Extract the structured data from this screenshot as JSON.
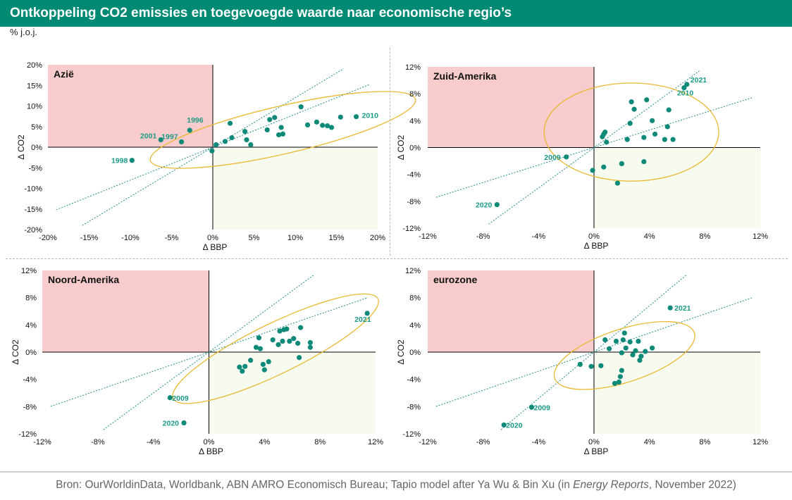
{
  "header": {
    "title": "Ontkoppeling CO2 emissies en toegevoegde waarde naar economische regio’s",
    "unit": "% j.o.j."
  },
  "footer": {
    "source_prefix": "Bron: OurWorldinData, Worldbank, ABN AMRO Economisch Bureau; Tapio model after Ya Wu & Bin Xu (in ",
    "source_italic": "Energy Reports",
    "source_suffix": ", November 2022)"
  },
  "colors": {
    "header_bg": "#008a74",
    "point": "#0f8a78",
    "label": "#1a9a86",
    "trend": "#2a8a88",
    "pink_zone": "#f8cccc",
    "green_zone": "#f7fbef",
    "ellipse": "#e8b830"
  },
  "chart_data": [
    {
      "type": "scatter",
      "title": "Azië",
      "xlabel": "Δ BBP",
      "ylabel": "Δ CO2",
      "xlim": [
        -20,
        20
      ],
      "ylim": [
        -20,
        20
      ],
      "xticks": [
        -20,
        -15,
        -10,
        -5,
        0,
        5,
        10,
        15,
        20
      ],
      "yticks": [
        -20,
        -15,
        -10,
        -5,
        0,
        5,
        10,
        15,
        20
      ],
      "xticklabels": [
        "-20%",
        "-15%",
        "-10%",
        "-5%",
        "0%",
        "5%",
        "10%",
        "15%",
        "20%"
      ],
      "yticklabels": [
        "-20%",
        "-15%",
        "-10%",
        "-5%",
        "0%",
        "5%",
        "10%",
        "15%",
        "20%"
      ],
      "trend_slopes": [
        0.8,
        1.2
      ],
      "ellipse": {
        "cx": 8.5,
        "cy": 4.2,
        "rx": 16.5,
        "ry": 5.8,
        "angle_deg": 13
      },
      "points": [
        {
          "x": -9.8,
          "y": -3.2,
          "label": "1998"
        },
        {
          "x": -6.3,
          "y": 1.8,
          "label": "2001"
        },
        {
          "x": -3.8,
          "y": 1.3,
          "label": "1997"
        },
        {
          "x": -2.8,
          "y": 4.1,
          "label": "1996"
        },
        {
          "x": 17.4,
          "y": 7.4,
          "label": "2010"
        },
        {
          "x": -0.1,
          "y": -0.9,
          "label": ""
        },
        {
          "x": 0.4,
          "y": 0.6,
          "label": ""
        },
        {
          "x": 1.5,
          "y": 1.4,
          "label": ""
        },
        {
          "x": 2.3,
          "y": 2.3,
          "label": ""
        },
        {
          "x": 2.1,
          "y": 5.8,
          "label": ""
        },
        {
          "x": 3.9,
          "y": 3.8,
          "label": ""
        },
        {
          "x": 4.1,
          "y": 1.8,
          "label": ""
        },
        {
          "x": 4.6,
          "y": 0.6,
          "label": ""
        },
        {
          "x": 6.6,
          "y": 4.2,
          "label": ""
        },
        {
          "x": 6.9,
          "y": 6.7,
          "label": ""
        },
        {
          "x": 7.5,
          "y": 7.2,
          "label": ""
        },
        {
          "x": 8.0,
          "y": 3.0,
          "label": ""
        },
        {
          "x": 8.3,
          "y": 4.8,
          "label": ""
        },
        {
          "x": 8.5,
          "y": 3.2,
          "label": ""
        },
        {
          "x": 10.7,
          "y": 9.8,
          "label": ""
        },
        {
          "x": 11.5,
          "y": 5.4,
          "label": ""
        },
        {
          "x": 12.6,
          "y": 6.1,
          "label": ""
        },
        {
          "x": 13.3,
          "y": 5.3,
          "label": ""
        },
        {
          "x": 13.9,
          "y": 5.2,
          "label": ""
        },
        {
          "x": 14.4,
          "y": 4.8,
          "label": ""
        },
        {
          "x": 15.5,
          "y": 7.3,
          "label": ""
        }
      ]
    },
    {
      "type": "scatter",
      "title": "Zuid-Amerika",
      "xlabel": "Δ BBP",
      "ylabel": "Δ CO2",
      "xlim": [
        -12,
        12
      ],
      "ylim": [
        -12,
        12
      ],
      "xticks": [
        -12,
        -8,
        -4,
        0,
        4,
        8,
        12
      ],
      "yticks": [
        -12,
        -8,
        -4,
        0,
        4,
        8,
        12
      ],
      "xticklabels": [
        "-12%",
        "-8%",
        "-4%",
        "0%",
        "4%",
        "8%",
        "12%"
      ],
      "yticklabels": [
        "-12%",
        "-8%",
        "-4%",
        "0%",
        "4%",
        "8%",
        "12%"
      ],
      "trend_slopes": [
        0.65,
        1.5
      ],
      "ellipse": {
        "cx": 2.7,
        "cy": 2.3,
        "rx": 6.3,
        "ry": 7.3,
        "angle_deg": 0
      },
      "points": [
        {
          "x": -2.0,
          "y": -1.4,
          "label": "2009"
        },
        {
          "x": -7.0,
          "y": -8.5,
          "label": "2020"
        },
        {
          "x": 6.7,
          "y": 9.4,
          "label": "2021"
        },
        {
          "x": 6.5,
          "y": 8.9,
          "label": "2010"
        },
        {
          "x": -0.1,
          "y": -3.4,
          "label": ""
        },
        {
          "x": 0.6,
          "y": 1.6,
          "label": ""
        },
        {
          "x": 0.7,
          "y": 2.0,
          "label": ""
        },
        {
          "x": 0.8,
          "y": 2.3,
          "label": ""
        },
        {
          "x": 0.9,
          "y": 0.8,
          "label": ""
        },
        {
          "x": 0.7,
          "y": -2.9,
          "label": ""
        },
        {
          "x": 1.7,
          "y": -5.3,
          "label": ""
        },
        {
          "x": 2.0,
          "y": -2.4,
          "label": ""
        },
        {
          "x": 2.4,
          "y": 1.2,
          "label": ""
        },
        {
          "x": 2.6,
          "y": 3.6,
          "label": ""
        },
        {
          "x": 2.7,
          "y": 6.8,
          "label": ""
        },
        {
          "x": 2.9,
          "y": 5.7,
          "label": ""
        },
        {
          "x": 3.6,
          "y": 1.5,
          "label": ""
        },
        {
          "x": 3.8,
          "y": 7.1,
          "label": ""
        },
        {
          "x": 3.6,
          "y": -2.1,
          "label": ""
        },
        {
          "x": 4.2,
          "y": 4.0,
          "label": ""
        },
        {
          "x": 4.4,
          "y": 2.0,
          "label": ""
        },
        {
          "x": 5.1,
          "y": 1.2,
          "label": ""
        },
        {
          "x": 5.3,
          "y": 3.1,
          "label": ""
        },
        {
          "x": 5.4,
          "y": 5.6,
          "label": ""
        },
        {
          "x": 5.7,
          "y": 1.2,
          "label": ""
        }
      ]
    },
    {
      "type": "scatter",
      "title": "Noord-Amerika",
      "xlabel": "Δ BBP",
      "ylabel": "Δ CO2",
      "xlim": [
        -12,
        12
      ],
      "ylim": [
        -12,
        12
      ],
      "xticks": [
        -12,
        -8,
        -4,
        0,
        4,
        8,
        12
      ],
      "yticks": [
        -12,
        -8,
        -4,
        0,
        4,
        8,
        12
      ],
      "xticklabels": [
        "-12%",
        "-8%",
        "-4%",
        "0%",
        "4%",
        "8%",
        "12%"
      ],
      "yticklabels": [
        "-12%",
        "-8%",
        "-4%",
        "0%",
        "4%",
        "8%",
        "12%"
      ],
      "trend_slopes": [
        0.7,
        1.5
      ],
      "ellipse": {
        "cx": 4.8,
        "cy": 0.5,
        "rx": 8.2,
        "ry": 3.7,
        "angle_deg": 26
      },
      "points": [
        {
          "x": -2.8,
          "y": -6.7,
          "label": "2009"
        },
        {
          "x": -1.8,
          "y": -10.4,
          "label": "2020"
        },
        {
          "x": 11.4,
          "y": 5.7,
          "label": "2021"
        },
        {
          "x": 2.2,
          "y": -2.2,
          "label": ""
        },
        {
          "x": 2.4,
          "y": -2.8,
          "label": ""
        },
        {
          "x": 2.6,
          "y": -2.1,
          "label": ""
        },
        {
          "x": 3.0,
          "y": -1.2,
          "label": ""
        },
        {
          "x": 3.4,
          "y": 0.7,
          "label": ""
        },
        {
          "x": 3.6,
          "y": 2.1,
          "label": ""
        },
        {
          "x": 3.7,
          "y": 0.5,
          "label": ""
        },
        {
          "x": 3.9,
          "y": -1.8,
          "label": ""
        },
        {
          "x": 4.0,
          "y": -2.6,
          "label": ""
        },
        {
          "x": 4.3,
          "y": -1.4,
          "label": ""
        },
        {
          "x": 4.6,
          "y": 1.8,
          "label": ""
        },
        {
          "x": 5.0,
          "y": 1.1,
          "label": ""
        },
        {
          "x": 5.1,
          "y": 3.1,
          "label": ""
        },
        {
          "x": 5.4,
          "y": 3.3,
          "label": ""
        },
        {
          "x": 5.3,
          "y": 1.6,
          "label": ""
        },
        {
          "x": 5.6,
          "y": 3.4,
          "label": ""
        },
        {
          "x": 5.8,
          "y": 1.6,
          "label": ""
        },
        {
          "x": 6.1,
          "y": 2.0,
          "label": ""
        },
        {
          "x": 6.4,
          "y": 1.3,
          "label": ""
        },
        {
          "x": 6.5,
          "y": -0.8,
          "label": ""
        },
        {
          "x": 6.6,
          "y": 3.6,
          "label": ""
        },
        {
          "x": 7.3,
          "y": 1.4,
          "label": ""
        },
        {
          "x": 7.3,
          "y": 0.7,
          "label": ""
        }
      ]
    },
    {
      "type": "scatter",
      "title": "eurozone",
      "xlabel": "Δ BBP",
      "ylabel": "Δ CO2",
      "xlim": [
        -12,
        12
      ],
      "ylim": [
        -12,
        12
      ],
      "xticks": [
        -12,
        -8,
        -4,
        0,
        4,
        8,
        12
      ],
      "yticks": [
        -12,
        -8,
        -4,
        0,
        4,
        8,
        12
      ],
      "xticklabels": [
        "-12%",
        "-8%",
        "-4%",
        "0%",
        "4%",
        "8%",
        "12%"
      ],
      "yticklabels": [
        "-12%",
        "-8%",
        "-4%",
        "0%",
        "4%",
        "8%",
        "12%"
      ],
      "trend_slopes": [
        0.7,
        1.7
      ],
      "ellipse": {
        "cx": 2.2,
        "cy": -0.5,
        "rx": 5.3,
        "ry": 3.9,
        "angle_deg": 18
      },
      "points": [
        {
          "x": -4.5,
          "y": -8.1,
          "label": "2009"
        },
        {
          "x": -6.5,
          "y": -10.7,
          "label": "2020"
        },
        {
          "x": 5.5,
          "y": 6.5,
          "label": "2021"
        },
        {
          "x": -1.0,
          "y": -1.8,
          "label": ""
        },
        {
          "x": -0.2,
          "y": -2.1,
          "label": ""
        },
        {
          "x": 0.5,
          "y": -2.0,
          "label": ""
        },
        {
          "x": 0.8,
          "y": 1.8,
          "label": ""
        },
        {
          "x": 1.1,
          "y": 0.5,
          "label": ""
        },
        {
          "x": 1.6,
          "y": 1.6,
          "label": ""
        },
        {
          "x": 1.5,
          "y": -4.6,
          "label": ""
        },
        {
          "x": 1.8,
          "y": -4.4,
          "label": ""
        },
        {
          "x": 1.9,
          "y": -3.6,
          "label": ""
        },
        {
          "x": 2.0,
          "y": -2.7,
          "label": ""
        },
        {
          "x": 2.0,
          "y": -0.1,
          "label": ""
        },
        {
          "x": 2.1,
          "y": 1.8,
          "label": ""
        },
        {
          "x": 2.2,
          "y": 2.8,
          "label": ""
        },
        {
          "x": 2.3,
          "y": 0.6,
          "label": ""
        },
        {
          "x": 2.6,
          "y": 1.5,
          "label": ""
        },
        {
          "x": 2.8,
          "y": -0.4,
          "label": ""
        },
        {
          "x": 3.0,
          "y": 0.2,
          "label": ""
        },
        {
          "x": 3.2,
          "y": 1.6,
          "label": ""
        },
        {
          "x": 3.3,
          "y": -1.2,
          "label": ""
        },
        {
          "x": 3.4,
          "y": -0.6,
          "label": ""
        },
        {
          "x": 3.7,
          "y": 0.1,
          "label": ""
        },
        {
          "x": 4.2,
          "y": 0.6,
          "label": ""
        }
      ]
    }
  ]
}
